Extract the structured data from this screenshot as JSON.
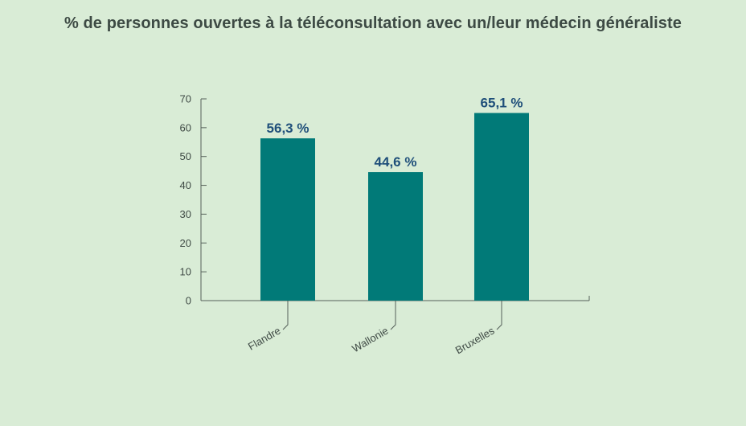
{
  "chart_data": {
    "type": "bar",
    "title": "% de personnes ouvertes à la téléconsultation avec un/leur médecin généraliste",
    "categories": [
      "Flandre",
      "Wallonie",
      "Bruxelles"
    ],
    "values": [
      56.3,
      44.6,
      65.1
    ],
    "data_labels": [
      "56,3 %",
      "44,6 %",
      "65,1 %"
    ],
    "yticks": [
      0,
      10,
      20,
      30,
      40,
      50,
      60,
      70
    ],
    "ylim": [
      0,
      70
    ],
    "xlabel": "",
    "ylabel": "",
    "grid": false,
    "legend": "none",
    "bar_color": "#017a78",
    "label_color": "#1f4f7a",
    "background": "#d9ecd6"
  }
}
